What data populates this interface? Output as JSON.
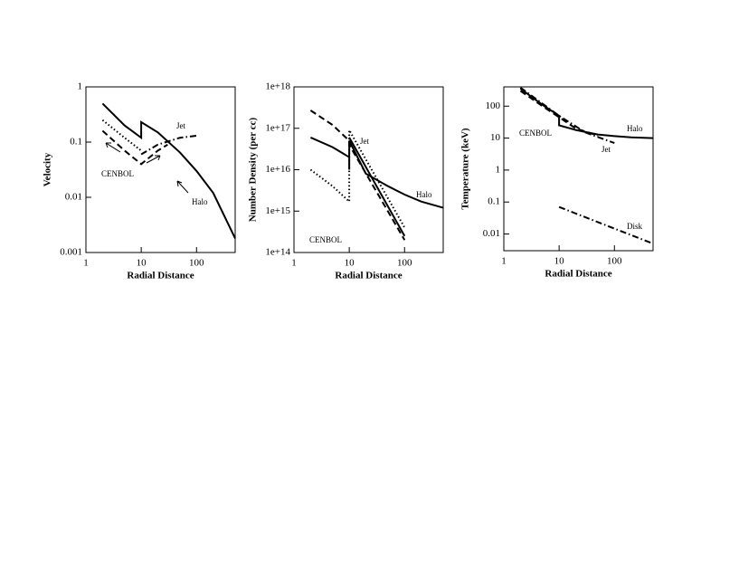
{
  "chart_data": [
    {
      "type": "line",
      "xlabel": "Radial Distance",
      "ylabel": "Velocity",
      "log_x": true,
      "log_y": true,
      "xlim": [
        1,
        500
      ],
      "ylim": [
        0.001,
        1
      ],
      "xticks": [
        1,
        10,
        100
      ],
      "yticks": [
        0.001,
        0.01,
        0.1,
        1
      ],
      "series": [
        {
          "color": "#000000",
          "dash": "solid",
          "x": [
            2,
            5,
            10,
            10,
            20,
            50,
            100,
            200,
            500
          ],
          "values": [
            0.5,
            0.2,
            0.12,
            0.23,
            0.15,
            0.065,
            0.03,
            0.012,
            0.0018
          ]
        },
        {
          "color": "#000000",
          "dash": "dotted",
          "x": [
            2,
            5,
            10
          ],
          "values": [
            0.25,
            0.12,
            0.07
          ]
        },
        {
          "color": "#000000",
          "dash": "dashed",
          "x": [
            2,
            5,
            10,
            20,
            30
          ],
          "values": [
            0.16,
            0.07,
            0.04,
            0.07,
            0.09
          ]
        },
        {
          "color": "#000000",
          "dash": "dashdot",
          "x": [
            10,
            20,
            50,
            100
          ],
          "values": [
            0.06,
            0.09,
            0.12,
            0.13
          ]
        }
      ],
      "annotations": [
        "Jet",
        "CENBOL",
        "Halo"
      ]
    },
    {
      "type": "line",
      "xlabel": "Radial Distance",
      "ylabel": "Number Density (per cc)",
      "log_x": true,
      "log_y": true,
      "xlim": [
        1,
        500
      ],
      "ylim": [
        100000000000000.0,
        1e+18
      ],
      "xticks": [
        1,
        10,
        100
      ],
      "yticks": [
        {
          "value": 100000000000000.0,
          "label": "1e+14"
        },
        {
          "value": 1000000000000000.0,
          "label": "1e+15"
        },
        {
          "value": 1e+16,
          "label": "1e+16"
        },
        {
          "value": 1e+17,
          "label": "1e+17"
        },
        {
          "value": 1e+18,
          "label": "1e+18"
        }
      ],
      "series": [
        {
          "color": "#000000",
          "dash": "solid",
          "x": [
            2,
            5,
            10,
            10,
            10,
            20,
            50,
            100,
            200,
            500
          ],
          "values": [
            6e+16,
            3.5e+16,
            2e+16,
            1e+16,
            5e+16,
            8000000000000000.0,
            4000000000000000.0,
            2500000000000000.0,
            1700000000000000.0,
            1200000000000000.0
          ]
        },
        {
          "color": "#000000",
          "dash": "solid",
          "x": [
            10,
            100
          ],
          "values": [
            6e+16,
            250000000000000.0
          ]
        },
        {
          "color": "#000000",
          "dash": "dashed",
          "x": [
            2,
            5,
            10,
            10,
            100
          ],
          "values": [
            2.7e+17,
            1.2e+17,
            5e+16,
            4e+16,
            200000000000000.0
          ]
        },
        {
          "color": "#000000",
          "dash": "dotted",
          "x": [
            2,
            5,
            10,
            10,
            100
          ],
          "values": [
            1e+16,
            4000000000000000.0,
            1700000000000000.0,
            9e+16,
            400000000000000.0
          ]
        }
      ],
      "annotations": [
        "Jet",
        "CENBOL",
        "Halo"
      ]
    },
    {
      "type": "line",
      "xlabel": "Radial Distance",
      "ylabel": "Temperature (keV)",
      "log_x": true,
      "log_y": true,
      "xlim": [
        1,
        500
      ],
      "ylim": [
        0.003,
        400
      ],
      "xticks": [
        1,
        10,
        100
      ],
      "yticks": [
        0.01,
        0.1,
        1,
        10,
        100
      ],
      "series": [
        {
          "color": "#000000",
          "dash": "solid",
          "x": [
            2,
            5,
            10,
            10,
            20,
            50,
            100,
            200,
            500
          ],
          "values": [
            350,
            110,
            50,
            25,
            18,
            13,
            11.5,
            10.5,
            10
          ]
        },
        {
          "color": "#000000",
          "dash": "dashed",
          "x": [
            2,
            5,
            10,
            20,
            50
          ],
          "values": [
            300,
            100,
            45,
            20,
            12
          ]
        },
        {
          "color": "#000000",
          "dash": "dashdot",
          "x": [
            2,
            10,
            30,
            100
          ],
          "values": [
            380,
            50,
            15,
            7
          ]
        },
        {
          "color": "#000000",
          "dash": "dashdot",
          "x": [
            10,
            500
          ],
          "values": [
            0.07,
            0.005
          ]
        }
      ],
      "annotations": [
        "CENBOL",
        "Halo",
        "Jet",
        "Disk"
      ]
    }
  ]
}
